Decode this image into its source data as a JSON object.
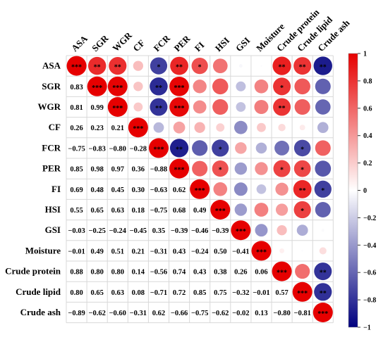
{
  "chart_data": {
    "type": "heatmap",
    "variables": [
      "ASA",
      "SGR",
      "WGR",
      "CF",
      "FCR",
      "PER",
      "FI",
      "HSI",
      "GSI",
      "Moisture",
      "Crude protein",
      "Crude lipid",
      "Crude ash"
    ],
    "correlation_matrix": [
      [
        1,
        0.83,
        0.81,
        0.26,
        -0.75,
        0.85,
        0.69,
        0.55,
        -0.03,
        -0.01,
        0.88,
        0.8,
        -0.89
      ],
      [
        0.83,
        1,
        0.99,
        0.23,
        -0.83,
        0.98,
        0.48,
        0.65,
        -0.25,
        0.49,
        0.8,
        0.65,
        -0.62
      ],
      [
        0.81,
        0.99,
        1,
        0.21,
        -0.8,
        0.97,
        0.45,
        0.63,
        -0.24,
        0.51,
        0.8,
        0.63,
        -0.6
      ],
      [
        0.26,
        0.23,
        0.21,
        1,
        -0.28,
        0.36,
        0.3,
        0.18,
        -0.45,
        0.21,
        0.14,
        0.08,
        -0.31
      ],
      [
        -0.75,
        -0.83,
        -0.8,
        -0.28,
        1,
        -0.88,
        -0.63,
        -0.75,
        0.35,
        -0.31,
        -0.56,
        -0.71,
        0.62
      ],
      [
        0.85,
        0.98,
        0.97,
        0.36,
        -0.88,
        1,
        0.62,
        0.68,
        -0.39,
        0.43,
        0.74,
        0.72,
        -0.66
      ],
      [
        0.69,
        0.48,
        0.45,
        0.3,
        -0.63,
        0.62,
        1,
        0.49,
        -0.46,
        -0.24,
        0.43,
        0.85,
        -0.75
      ],
      [
        0.55,
        0.65,
        0.63,
        0.18,
        -0.75,
        0.68,
        0.49,
        1,
        -0.39,
        0.5,
        0.38,
        0.75,
        -0.62
      ],
      [
        -0.03,
        -0.25,
        -0.24,
        -0.45,
        0.35,
        -0.39,
        -0.46,
        -0.39,
        1,
        -0.41,
        0.26,
        -0.32,
        -0.02
      ],
      [
        -0.01,
        0.49,
        0.51,
        0.21,
        -0.31,
        0.43,
        -0.24,
        0.5,
        -0.41,
        1,
        0.06,
        -0.01,
        0.13
      ],
      [
        0.88,
        0.8,
        0.8,
        0.14,
        -0.56,
        0.74,
        0.43,
        0.38,
        0.26,
        0.06,
        1,
        0.57,
        -0.8
      ],
      [
        0.8,
        0.65,
        0.63,
        0.08,
        -0.71,
        0.72,
        0.85,
        0.75,
        -0.32,
        -0.01,
        0.57,
        1,
        -0.81
      ],
      [
        -0.89,
        -0.62,
        -0.6,
        -0.31,
        0.62,
        -0.66,
        -0.75,
        -0.62,
        -0.02,
        0.13,
        -0.8,
        -0.81,
        1
      ]
    ],
    "upper_significance": [
      [
        "***",
        "**",
        "**",
        "",
        "*",
        "**",
        "*",
        "",
        "",
        "",
        "**",
        "**",
        "**"
      ],
      [
        "",
        "***",
        "***",
        "",
        "**",
        "***",
        "",
        "",
        "",
        "",
        "*",
        "",
        ""
      ],
      [
        "",
        "",
        "***",
        "",
        "**",
        "***",
        "",
        "",
        "",
        "",
        "**",
        "",
        ""
      ],
      [
        "",
        "",
        "",
        "***",
        "",
        "",
        "",
        "",
        "",
        "",
        "",
        "",
        ""
      ],
      [
        "",
        "",
        "",
        "",
        "***",
        "**",
        "",
        "*",
        "",
        "",
        "",
        "*",
        ""
      ],
      [
        "",
        "",
        "",
        "",
        "",
        "***",
        "",
        "*",
        "",
        "",
        "*",
        "*",
        ""
      ],
      [
        "",
        "",
        "",
        "",
        "",
        "",
        "***",
        "",
        "",
        "",
        "",
        "**",
        "*"
      ],
      [
        "",
        "",
        "",
        "",
        "",
        "",
        "",
        "***",
        "",
        "",
        "",
        "*",
        ""
      ],
      [
        "",
        "",
        "",
        "",
        "",
        "",
        "",
        "",
        "***",
        "",
        "",
        "",
        ""
      ],
      [
        "",
        "",
        "",
        "",
        "",
        "",
        "",
        "",
        "",
        "***",
        "",
        "",
        ""
      ],
      [
        "",
        "",
        "",
        "",
        "",
        "",
        "",
        "",
        "",
        "",
        "***",
        "",
        "**"
      ],
      [
        "",
        "",
        "",
        "",
        "",
        "",
        "",
        "",
        "",
        "",
        "",
        "***",
        "**"
      ],
      [
        "",
        "",
        "",
        "",
        "",
        "",
        "",
        "",
        "",
        "",
        "",
        "",
        "***"
      ]
    ],
    "colorscale": {
      "min": -1,
      "max": 1,
      "low_color": "#00007f",
      "mid_color": "#ffffff",
      "high_color": "#e60000"
    },
    "colorbar_ticks": [
      "1",
      "0.8",
      "0.6",
      "0.4",
      "0.2",
      "0",
      "−0.2",
      "−0.4",
      "−0.6",
      "−0.8",
      "−1"
    ],
    "legend_position": "right",
    "grid": true
  }
}
